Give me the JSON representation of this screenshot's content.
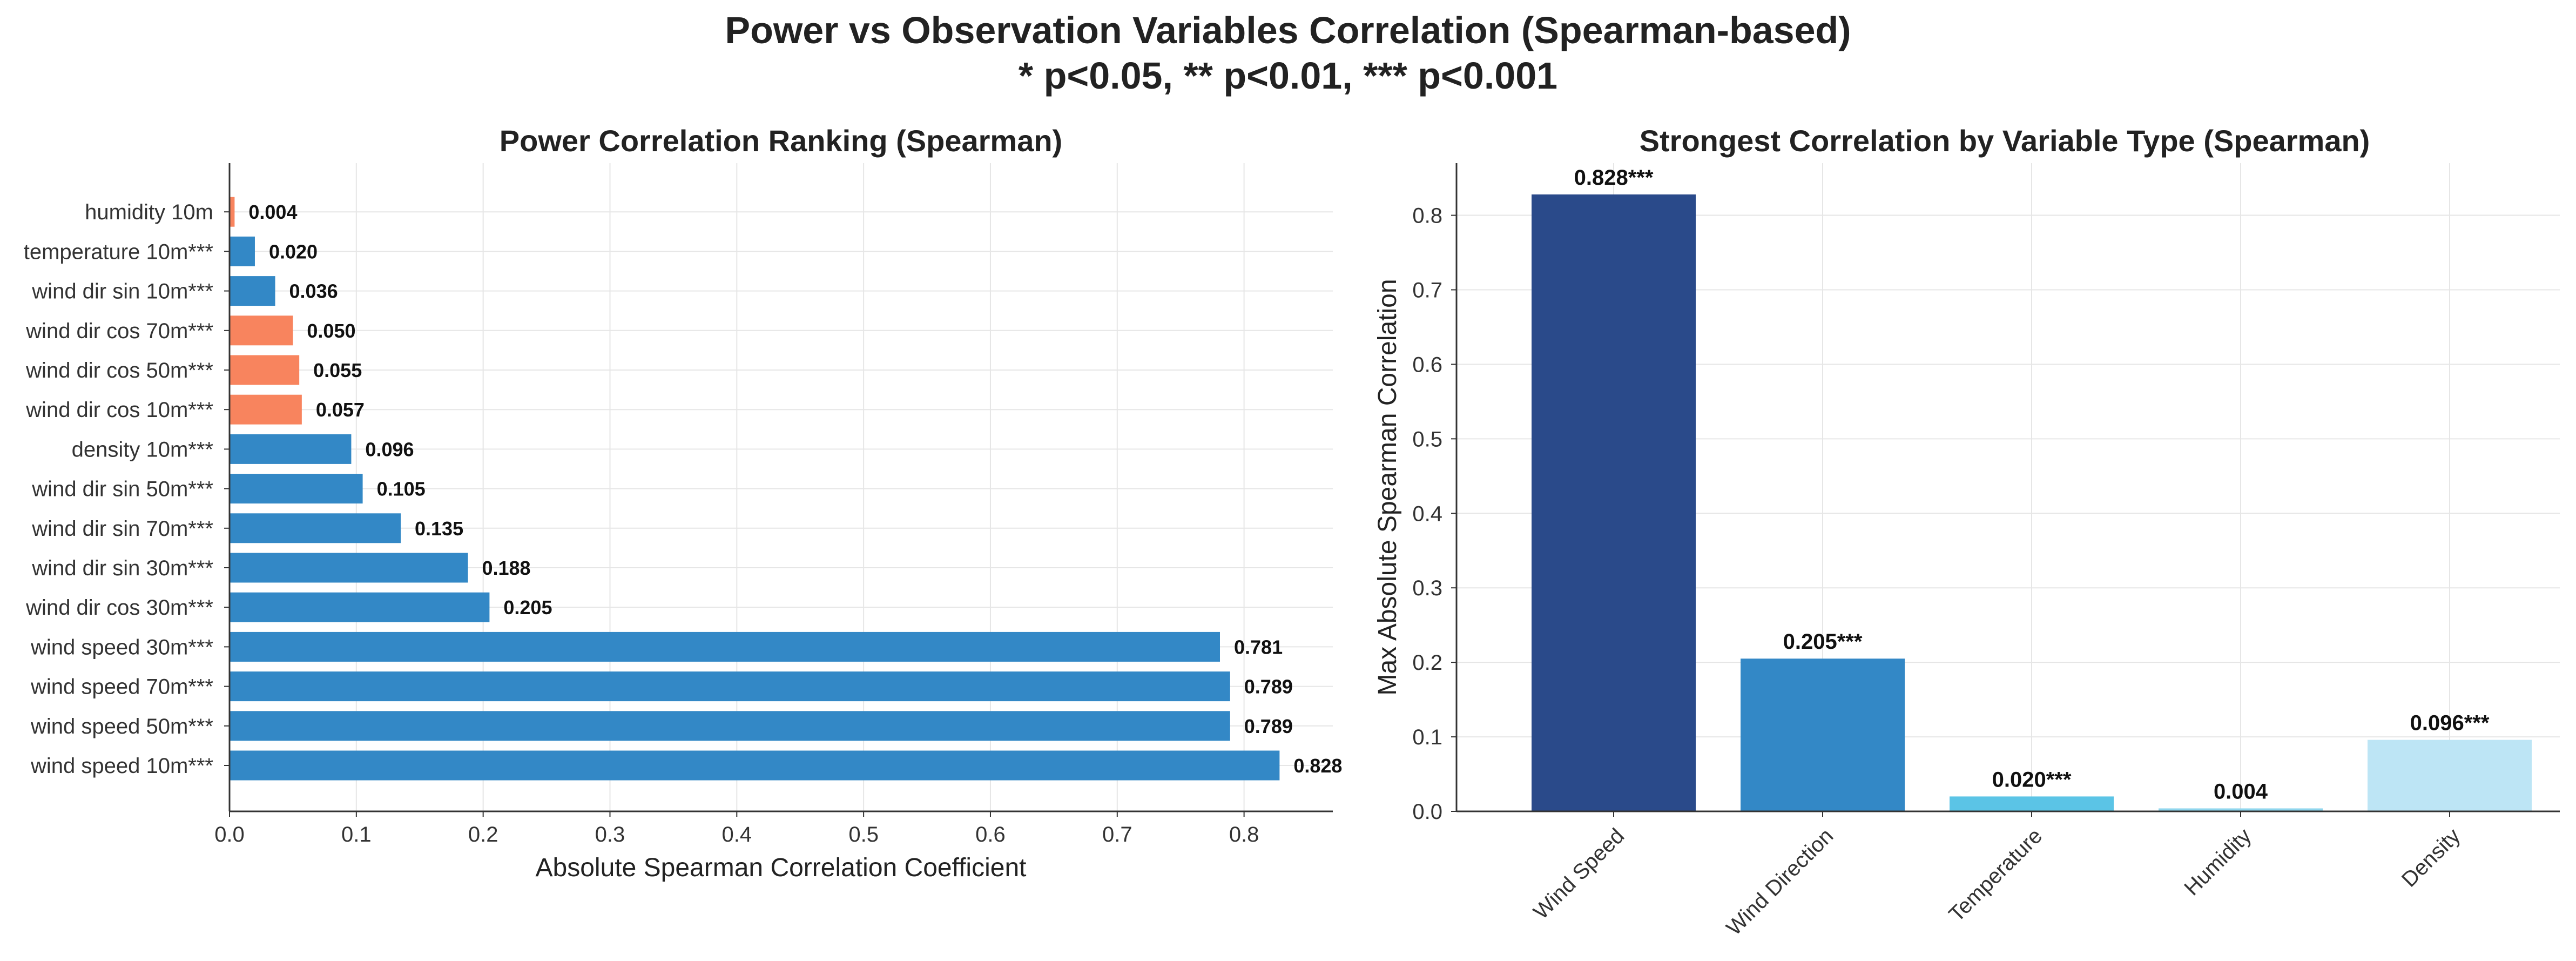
{
  "figure": {
    "title_line1": "Power vs Observation Variables Correlation (Spearman-based)",
    "title_line2": "* p<0.05, ** p<0.01, *** p<0.001"
  },
  "chart_data": [
    {
      "type": "bar",
      "orientation": "horizontal",
      "title": "Power Correlation Ranking (Spearman)",
      "xlabel": "Absolute Spearman Correlation Coefficient",
      "ylabel": "",
      "xlim": [
        0,
        0.87
      ],
      "xticks": [
        0.0,
        0.1,
        0.2,
        0.3,
        0.4,
        0.5,
        0.6,
        0.7,
        0.8
      ],
      "xtick_labels": [
        "0.0",
        "0.1",
        "0.2",
        "0.3",
        "0.4",
        "0.5",
        "0.6",
        "0.7",
        "0.8"
      ],
      "grid": true,
      "colors": {
        "positive": "#3388c6",
        "negative": "#f8845e"
      },
      "categories": [
        "wind speed 10m***",
        "wind speed 50m***",
        "wind speed 70m***",
        "wind speed 30m***",
        "wind dir cos 30m***",
        "wind dir sin 30m***",
        "wind dir sin 70m***",
        "wind dir sin 50m***",
        "density 10m***",
        "wind dir cos 10m***",
        "wind dir cos 50m***",
        "wind dir cos 70m***",
        "wind dir sin 10m***",
        "temperature 10m***",
        "humidity 10m"
      ],
      "values": [
        0.828,
        0.789,
        0.789,
        0.781,
        0.205,
        0.188,
        0.135,
        0.105,
        0.096,
        0.057,
        0.055,
        0.05,
        0.036,
        0.02,
        0.004
      ],
      "value_labels": [
        "0.828",
        "0.789",
        "0.789",
        "0.781",
        "0.205",
        "0.188",
        "0.135",
        "0.105",
        "0.096",
        "0.057",
        "0.055",
        "0.050",
        "0.036",
        "0.020",
        "0.004"
      ],
      "signs": [
        "positive",
        "positive",
        "positive",
        "positive",
        "positive",
        "positive",
        "positive",
        "positive",
        "positive",
        "negative",
        "negative",
        "negative",
        "positive",
        "positive",
        "negative"
      ]
    },
    {
      "type": "bar",
      "orientation": "vertical",
      "title": "Strongest Correlation by Variable Type (Spearman)",
      "xlabel": "",
      "ylabel": "Max Absolute Spearman Correlation",
      "ylim": [
        0,
        0.87
      ],
      "yticks": [
        0.0,
        0.1,
        0.2,
        0.3,
        0.4,
        0.5,
        0.6,
        0.7,
        0.8
      ],
      "ytick_labels": [
        "0.0",
        "0.1",
        "0.2",
        "0.3",
        "0.4",
        "0.5",
        "0.6",
        "0.7",
        "0.8"
      ],
      "grid": true,
      "categories": [
        "Wind Speed",
        "Wind Direction",
        "Temperature",
        "Humidity",
        "Density"
      ],
      "values": [
        0.828,
        0.205,
        0.02,
        0.004,
        0.096
      ],
      "value_labels": [
        "0.828***",
        "0.205***",
        "0.020***",
        "0.004",
        "0.096***"
      ],
      "colors": [
        "#2a4a8a",
        "#3388c6",
        "#5bc4e6",
        "#8fd6ee",
        "#bde5f5"
      ]
    }
  ]
}
